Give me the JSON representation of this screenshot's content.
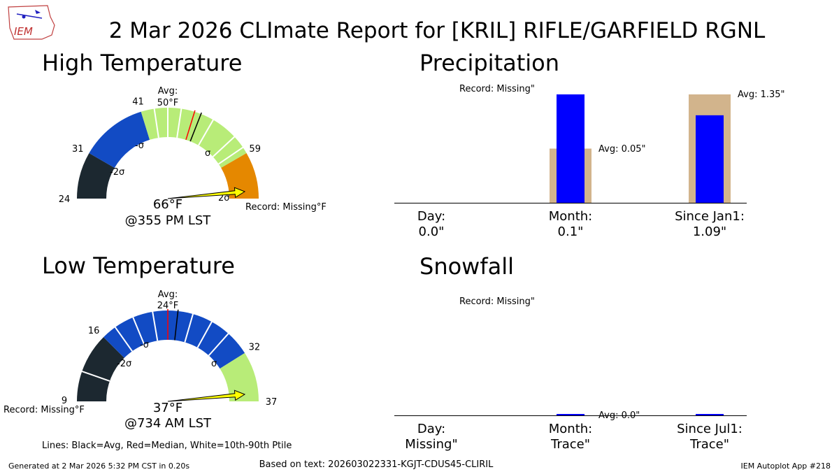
{
  "title": "2 Mar 2026 CLImate Report for [KRIL] RIFLE/GARFIELD RGNL",
  "logo": {
    "text": "IEM",
    "description": "iowa-outline-weather-station-logo"
  },
  "colors": {
    "record_low_band": "#1c2830",
    "sigma2_band": "#124bc4",
    "sigma1_band": "#b8ec78",
    "high_band": "#e58800",
    "above_sigma_band": "#e79400",
    "needle": "#ffff00",
    "avg_bar": "#d2b48c",
    "obs_bar": "#0000ff",
    "median_line": "#ff0000",
    "avg_line": "#000000"
  },
  "panels": {
    "high_temp": {
      "heading": "High Temperature",
      "avg_label_line1": "Avg:",
      "avg_label_line2": "50°F",
      "value_text": "66°F",
      "time_text": "@355 PM LST",
      "record_text": "Record: Missing°F",
      "sigma_labels": {
        "minus2": "-2σ",
        "minus1": "-σ",
        "plus1": "σ",
        "plus2": "2σ"
      }
    },
    "low_temp": {
      "heading": "Low Temperature",
      "avg_label_line1": "Avg:",
      "avg_label_line2": "24°F",
      "value_text": "37°F",
      "time_text": "@734 AM LST",
      "record_text": "Record: Missing°F",
      "sigma_labels": {
        "minus2": "-2σ",
        "minus1": "-σ",
        "plus1": "σ"
      }
    },
    "precip": {
      "heading": "Precipitation",
      "record_text": "Record: Missing\"",
      "avg_month_text": "Avg: 0.05\"",
      "avg_year_text": "Avg: 1.35\"",
      "categories": [
        {
          "line1": "Day:",
          "line2": "0.0\""
        },
        {
          "line1": "Month:",
          "line2": "0.1\""
        },
        {
          "line1": "Since Jan1:",
          "line2": "1.09\""
        }
      ]
    },
    "snow": {
      "heading": "Snowfall",
      "record_text": "Record: Missing\"",
      "avg_month_text": "Avg: 0.0\"",
      "categories": [
        {
          "line1": "Day:",
          "line2": "Missing\""
        },
        {
          "line1": "Month:",
          "line2": "Trace\""
        },
        {
          "line1": "Since Jul1:",
          "line2": "Trace\""
        }
      ]
    }
  },
  "legend_text": "Lines: Black=Avg, Red=Median, White=10th-90th Ptile",
  "footer": {
    "generated": "Generated at 2 Mar 2026 5:32 PM CST in 0.20s",
    "based_on": "Based on text: 202603022331-KGJT-CDUS45-CLIRIL",
    "app": "IEM Autoplot App #218"
  },
  "chart_data": [
    {
      "type": "gauge",
      "title": "High Temperature",
      "range": [
        24,
        66
      ],
      "bands": [
        {
          "from": 24,
          "to": 31,
          "label": "record-low-to-minus-2sigma"
        },
        {
          "from": 31,
          "to": 41,
          "label": "minus-2sigma-to-minus-1sigma"
        },
        {
          "from": 41,
          "to": 59,
          "label": "minus-1sigma-to-plus-1sigma"
        },
        {
          "from": 59,
          "to": 66,
          "label": "above-plus-1sigma"
        }
      ],
      "ticks": [
        24,
        31,
        41,
        59
      ],
      "average": 50,
      "median": 49,
      "percentile_lines": [
        43,
        45,
        47,
        52,
        56,
        58
      ],
      "observed": 66,
      "record": null
    },
    {
      "type": "gauge",
      "title": "Low Temperature",
      "range": [
        9,
        37
      ],
      "bands": [
        {
          "from": 9,
          "to": 16,
          "label": "record-low-to-minus-2sigma"
        },
        {
          "from": 16,
          "to": 32,
          "label": "minus-1sigma-to-plus-1sigma"
        },
        {
          "from": 32,
          "to": 37,
          "label": "above-plus-1sigma"
        }
      ],
      "ticks": [
        9,
        16,
        32,
        37
      ],
      "average": 24,
      "median": 23,
      "percentile_lines": [
        12,
        17.5,
        19.5,
        21.5,
        25.5,
        27.5,
        29.5
      ],
      "observed": 37,
      "record": null
    },
    {
      "type": "bar",
      "title": "Precipitation",
      "categories": [
        "Day",
        "Month",
        "Since Jan1"
      ],
      "series": [
        {
          "name": "Average",
          "values": [
            null,
            0.05,
            1.35
          ]
        },
        {
          "name": "Observed",
          "values": [
            0.0,
            0.1,
            1.09
          ]
        }
      ],
      "bar_max_month": 0.1,
      "bar_max_year": 1.35
    },
    {
      "type": "bar",
      "title": "Snowfall",
      "categories": [
        "Day",
        "Month",
        "Since Jul1"
      ],
      "series": [
        {
          "name": "Average",
          "values": [
            null,
            0.0,
            null
          ]
        },
        {
          "name": "Observed",
          "values": [
            null,
            0.0001,
            0.0001
          ]
        }
      ]
    }
  ]
}
